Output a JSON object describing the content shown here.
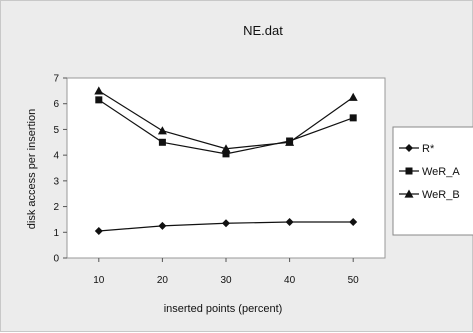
{
  "chart_data": {
    "type": "line",
    "title": "NE.dat",
    "xlabel": "inserted points (percent)",
    "ylabel": "disk access per insertion",
    "x": [
      10,
      20,
      30,
      40,
      50
    ],
    "xlim": [
      5,
      55
    ],
    "ylim": [
      0,
      7
    ],
    "yticks": [
      0,
      1,
      2,
      3,
      4,
      5,
      6,
      7
    ],
    "grid": false,
    "legend_position": "right",
    "series": [
      {
        "name": "R*",
        "marker": "diamond",
        "values": [
          1.05,
          1.25,
          1.35,
          1.4,
          1.4
        ]
      },
      {
        "name": "WeR_A",
        "marker": "square",
        "values": [
          6.15,
          4.5,
          4.05,
          4.55,
          5.45
        ]
      },
      {
        "name": "WeR_B",
        "marker": "triangle",
        "values": [
          6.5,
          4.95,
          4.25,
          4.5,
          6.25
        ]
      }
    ],
    "colors": {
      "line": "#111111",
      "background": "#ececec",
      "plot_area": "#ffffff"
    }
  }
}
